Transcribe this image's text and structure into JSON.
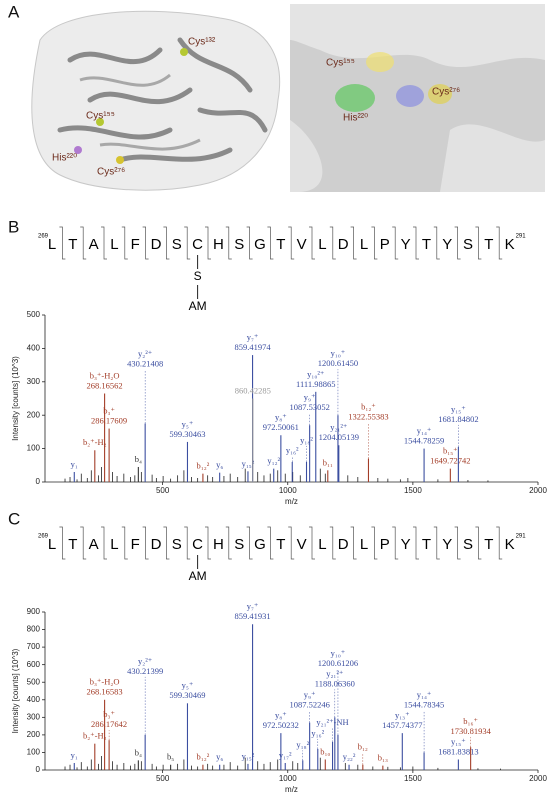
{
  "panel_labels": [
    "A",
    "B",
    "C"
  ],
  "structure": {
    "left_labels": [
      "Cys¹³²",
      "Cys¹⁵⁵",
      "His²²⁰",
      "Cys²⁷⁶"
    ],
    "right_labels": [
      "Cys¹⁵⁵",
      "His²²⁰",
      "Cys²⁷⁶"
    ]
  },
  "chart_data": [
    {
      "type": "spectrum",
      "peptide": {
        "sequence": [
          "L",
          "T",
          "A",
          "L",
          "F",
          "D",
          "S",
          "C",
          "H",
          "S",
          "G",
          "T",
          "V",
          "L",
          "D",
          "L",
          "P",
          "Y",
          "T",
          "Y",
          "S",
          "T",
          "K"
        ],
        "start": "269",
        "end": "291",
        "modification": [
          "S",
          "AM"
        ],
        "site": 7
      },
      "xlabel": "m/z",
      "ylabel": "Intensity [counts] (10^3)",
      "xlim": [
        30,
        2000
      ],
      "xticks": [
        500,
        1000,
        1500,
        2000
      ],
      "ylim": [
        0,
        500
      ],
      "yticks": [
        0,
        100,
        200,
        300,
        400,
        500
      ],
      "peaks": [
        {
          "x": 147,
          "value": 30,
          "label": "y₁",
          "color": "#3b4ea0"
        },
        {
          "x": 229,
          "value": 95,
          "label": "b₂⁺-H₂",
          "color": "#a33d28"
        },
        {
          "x": 268.16562,
          "value": 265,
          "label": "b₃⁺-H₂O",
          "mz_label": "268.16562",
          "color": "#a33d28"
        },
        {
          "x": 286.17609,
          "value": 160,
          "label": "b₃⁺",
          "mz_label": "286.17609",
          "color": "#a33d28"
        },
        {
          "x": 403,
          "value": 45,
          "label": "b₄",
          "color": "#333333"
        },
        {
          "x": 430.21408,
          "value": 175,
          "label": "y₂²⁺",
          "mz_label": "430.21408",
          "color": "#3b4ea0"
        },
        {
          "x": 599.30463,
          "value": 120,
          "label": "y₅⁺",
          "mz_label": "599.30463",
          "color": "#3b4ea0"
        },
        {
          "x": 661,
          "value": 25,
          "label": "b₁₂²",
          "color": "#a33d28"
        },
        {
          "x": 728,
          "value": 28,
          "label": "y₆",
          "color": "#3b4ea0"
        },
        {
          "x": 841,
          "value": 32,
          "label": "y₁₅²",
          "color": "#3b4ea0"
        },
        {
          "x": 859.41974,
          "value": 380,
          "label": "y₇⁺",
          "mz_label": "859.41974",
          "color": "#3b4ea0"
        },
        {
          "x": 860.42285,
          "value": 250,
          "mz_label": "860.42285",
          "color": "#9a9a9a"
        },
        {
          "x": 944,
          "value": 40,
          "label": "y₁₂²",
          "color": "#3b4ea0"
        },
        {
          "x": 972.50061,
          "value": 140,
          "label": "y₈⁺",
          "mz_label": "972.50061",
          "color": "#3b4ea0"
        },
        {
          "x": 1018,
          "value": 60,
          "label": "y₁₆²",
          "color": "#3b4ea0"
        },
        {
          "x": 1075,
          "value": 60,
          "label": "y₁₈²",
          "color": "#3b4ea0"
        },
        {
          "x": 1087.53052,
          "value": 170,
          "label": "y₉⁺",
          "mz_label": "1087.53052",
          "color": "#3b4ea0"
        },
        {
          "x": 1111.98865,
          "value": 270,
          "label": "y₁₀²⁺",
          "mz_label": "1111.98865",
          "color": "#3b4ea0"
        },
        {
          "x": 1160,
          "value": 35,
          "label": "b₁₁",
          "color": "#a33d28"
        },
        {
          "x": 1200.6145,
          "value": 200,
          "label": "y₁₀⁺",
          "mz_label": "1200.61450",
          "color": "#3b4ea0"
        },
        {
          "x": 1204.05139,
          "value": 110,
          "label": "y₂₁²⁺",
          "mz_label": "1204.05139",
          "color": "#3b4ea0"
        },
        {
          "x": 1322.55383,
          "value": 70,
          "label": "b₁₂⁺",
          "mz_label": "1322.55383",
          "color": "#a33d28"
        },
        {
          "x": 1544.78259,
          "value": 100,
          "label": "y₁₄⁺",
          "mz_label": "1544.78259",
          "color": "#3b4ea0"
        },
        {
          "x": 1649.72742,
          "value": 40,
          "label": "b₁₅⁺",
          "mz_label": "1649.72742",
          "color": "#a33d28"
        },
        {
          "x": 1681.84802,
          "value": 105,
          "label": "y₁₅⁺",
          "mz_label": "1681.84802",
          "color": "#3b4ea0"
        }
      ],
      "background_peaks": {
        "x": [
          110,
          130,
          158,
          175,
          199,
          215,
          244,
          256,
          300,
          318,
          345,
          372,
          389,
          415,
          458,
          475,
          502,
          532,
          560,
          585,
          615,
          640,
          680,
          700,
          745,
          770,
          800,
          830,
          880,
          905,
          930,
          960,
          990,
          1020,
          1050,
          1130,
          1150,
          1240,
          1280,
          1360,
          1400,
          1450,
          1480,
          1600,
          1720,
          1800
        ],
        "values": [
          10,
          15,
          8,
          25,
          12,
          35,
          20,
          45,
          30,
          18,
          25,
          15,
          20,
          30,
          22,
          12,
          18,
          10,
          20,
          35,
          15,
          12,
          20,
          15,
          18,
          25,
          15,
          40,
          30,
          20,
          25,
          35,
          25,
          30,
          20,
          40,
          25,
          20,
          15,
          12,
          10,
          8,
          12,
          8,
          6,
          5
        ],
        "color": "#222222"
      }
    },
    {
      "type": "spectrum",
      "peptide": {
        "sequence": [
          "L",
          "T",
          "A",
          "L",
          "F",
          "D",
          "S",
          "C",
          "H",
          "S",
          "G",
          "T",
          "V",
          "L",
          "D",
          "L",
          "P",
          "Y",
          "T",
          "Y",
          "S",
          "T",
          "K"
        ],
        "start": "269",
        "end": "291",
        "modification": [
          "AM"
        ],
        "site": 7
      },
      "xlabel": "m/z",
      "ylabel": "Intensity [counts] (10^3)",
      "xlim": [
        30,
        2000
      ],
      "xticks": [
        500,
        1000,
        1500,
        2000
      ],
      "ylim": [
        0,
        900
      ],
      "yticks": [
        0,
        100,
        200,
        300,
        400,
        500,
        600,
        700,
        800,
        900
      ],
      "peaks": [
        {
          "x": 147,
          "value": 40,
          "label": "y₁",
          "color": "#3b4ea0"
        },
        {
          "x": 229,
          "value": 150,
          "label": "b₂⁺-H₂",
          "color": "#a33d28"
        },
        {
          "x": 268.16583,
          "value": 400,
          "label": "b₃⁺-H₂O",
          "mz_label": "268.16583",
          "color": "#a33d28"
        },
        {
          "x": 286.17642,
          "value": 170,
          "label": "b₃⁺",
          "mz_label": "286.17642",
          "color": "#a33d28"
        },
        {
          "x": 403,
          "value": 55,
          "label": "b₄",
          "color": "#333333"
        },
        {
          "x": 430.21399,
          "value": 200,
          "label": "y₂²⁺",
          "mz_label": "430.21399",
          "color": "#3b4ea0"
        },
        {
          "x": 532,
          "value": 30,
          "label": "b₅",
          "color": "#333333"
        },
        {
          "x": 599.30469,
          "value": 380,
          "label": "y₅⁺",
          "mz_label": "599.30469",
          "color": "#3b4ea0"
        },
        {
          "x": 661,
          "value": 30,
          "label": "b₁₂²",
          "color": "#a33d28"
        },
        {
          "x": 728,
          "value": 30,
          "label": "y₆",
          "color": "#3b4ea0"
        },
        {
          "x": 841,
          "value": 35,
          "label": "y₁₅²",
          "color": "#3b4ea0"
        },
        {
          "x": 859.41931,
          "value": 830,
          "label": "y₇⁺",
          "mz_label": "859.41931",
          "color": "#3b4ea0"
        },
        {
          "x": 972.50232,
          "value": 210,
          "label": "y₈⁺",
          "mz_label": "972.50232",
          "color": "#3b4ea0"
        },
        {
          "x": 990,
          "value": 40,
          "label": "y₁₇²",
          "color": "#3b4ea0"
        },
        {
          "x": 1060,
          "value": 55,
          "label": "y₁₈²",
          "color": "#3b4ea0"
        },
        {
          "x": 1087.52246,
          "value": 270,
          "label": "y₉⁺",
          "mz_label": "1087.52246",
          "color": "#3b4ea0"
        },
        {
          "x": 1120,
          "value": 120,
          "label": "y₁₆²",
          "color": "#3b4ea0"
        },
        {
          "x": 1150,
          "value": 60,
          "label": "b₁₀",
          "color": "#a33d28"
        },
        {
          "x": 1179,
          "value": 160,
          "label": "y₂₁²⁺-NH",
          "color": "#3b4ea0"
        },
        {
          "x": 1188.0636,
          "value": 300,
          "label": "y₂₁²⁺",
          "mz_label": "1188.06360",
          "color": "#3b4ea0"
        },
        {
          "x": 1200.61206,
          "value": 200,
          "label": "y₁₀⁺",
          "mz_label": "1200.61206",
          "color": "#3b4ea0"
        },
        {
          "x": 1245,
          "value": 30,
          "label": "y₂₂²",
          "color": "#3b4ea0"
        },
        {
          "x": 1300,
          "value": 30,
          "label": "b₁₂",
          "color": "#a33d28"
        },
        {
          "x": 1380,
          "value": 25,
          "label": "b₁₃",
          "color": "#a33d28"
        },
        {
          "x": 1457.74377,
          "value": 210,
          "label": "y₁₃⁺",
          "mz_label": "1457.74377",
          "color": "#3b4ea0"
        },
        {
          "x": 1544.78345,
          "value": 100,
          "label": "y₁₄⁺",
          "mz_label": "1544.78345",
          "color": "#3b4ea0"
        },
        {
          "x": 1681.83813,
          "value": 60,
          "label": "y₁₅⁺",
          "mz_label": "1681.83813",
          "color": "#3b4ea0"
        },
        {
          "x": 1730.81934,
          "value": 130,
          "label": "b₁₆⁺",
          "mz_label": "1730.81934",
          "color": "#a33d28"
        }
      ],
      "background_peaks": {
        "x": [
          110,
          130,
          158,
          175,
          199,
          215,
          244,
          256,
          300,
          318,
          345,
          372,
          389,
          415,
          458,
          475,
          502,
          560,
          585,
          615,
          640,
          680,
          700,
          745,
          770,
          800,
          830,
          880,
          905,
          930,
          960,
          1020,
          1040,
          1130,
          1230,
          1280,
          1340,
          1400,
          1450,
          1500,
          1600,
          1760,
          1850
        ],
        "values": [
          20,
          30,
          15,
          45,
          20,
          60,
          35,
          80,
          50,
          30,
          40,
          25,
          35,
          50,
          35,
          20,
          30,
          35,
          60,
          25,
          20,
          35,
          25,
          30,
          45,
          25,
          70,
          50,
          35,
          45,
          60,
          50,
          40,
          70,
          40,
          30,
          20,
          18,
          15,
          20,
          12,
          10,
          8
        ],
        "color": "#222222"
      }
    }
  ]
}
